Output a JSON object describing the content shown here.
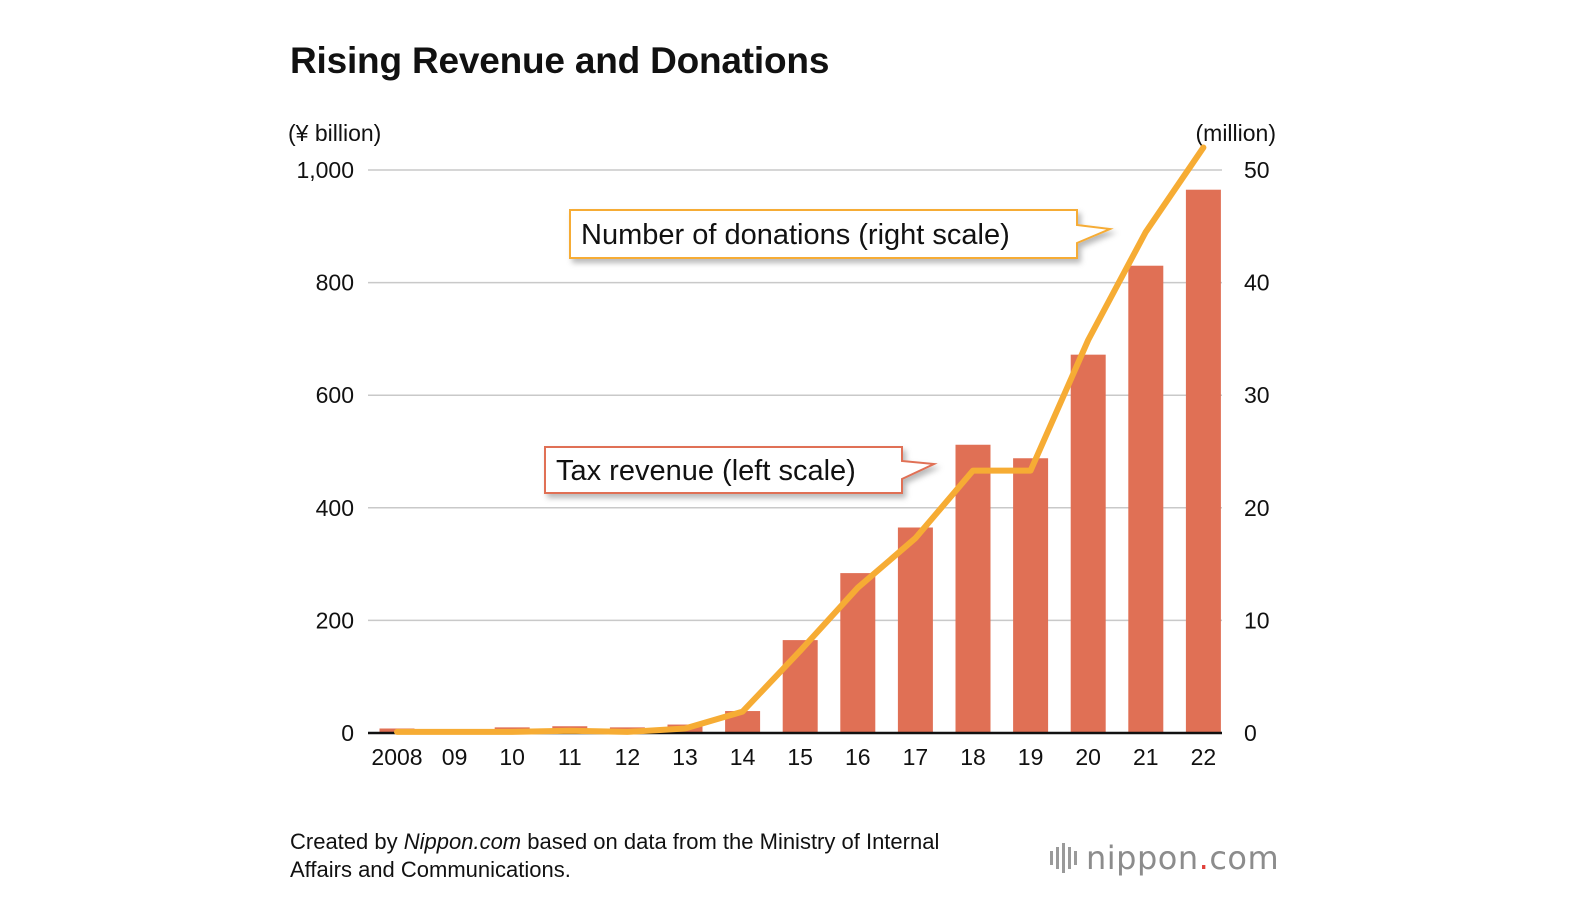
{
  "title": "Rising Revenue and Donations",
  "chart_data": {
    "type": "bar",
    "categories": [
      "2008",
      "09",
      "10",
      "11",
      "12",
      "13",
      "14",
      "15",
      "16",
      "17",
      "18",
      "19",
      "20",
      "21",
      "22"
    ],
    "series": [
      {
        "name": "Tax revenue (left scale)",
        "type": "bar",
        "axis": "left",
        "color": "#e07055",
        "values": [
          8,
          7,
          10,
          12,
          10,
          15,
          39,
          165,
          284,
          365,
          512,
          488,
          672,
          830,
          965
        ]
      },
      {
        "name": "Number of donations (right scale)",
        "type": "line",
        "axis": "right",
        "color": "#f6ac34",
        "values": [
          0.1,
          0.1,
          0.1,
          0.2,
          0.1,
          0.4,
          1.9,
          7.3,
          12.9,
          17.3,
          23.3,
          23.3,
          34.9,
          44.5,
          52
        ]
      }
    ],
    "y_left": {
      "unit_label": "(¥ billion)",
      "range": [
        0,
        1000
      ],
      "ticks": [
        0,
        200,
        400,
        600,
        800,
        1000
      ],
      "tick_labels": [
        "0",
        "200",
        "400",
        "600",
        "800",
        "1,000"
      ]
    },
    "y_right": {
      "unit_label": "(million)",
      "range": [
        0,
        50
      ],
      "ticks": [
        0,
        10,
        20,
        30,
        40,
        50
      ],
      "tick_labels": [
        "0",
        "10",
        "20",
        "30",
        "40",
        "50"
      ]
    },
    "grid": true,
    "annotations": [
      {
        "text": "Number of donations (right scale)",
        "target": "Number of donations (right scale)",
        "border_color": "#f6ac34"
      },
      {
        "text": "Tax revenue (left scale)",
        "target": "Tax revenue (left scale)",
        "border_color": "#e07055"
      }
    ]
  },
  "source": {
    "prefix": "Created by ",
    "site": "Nippon.com",
    "suffix": " based on data from the Ministry of Internal Affairs and Communications."
  },
  "logo": {
    "name": "nippon",
    "dot": ".",
    "tld": "com"
  }
}
